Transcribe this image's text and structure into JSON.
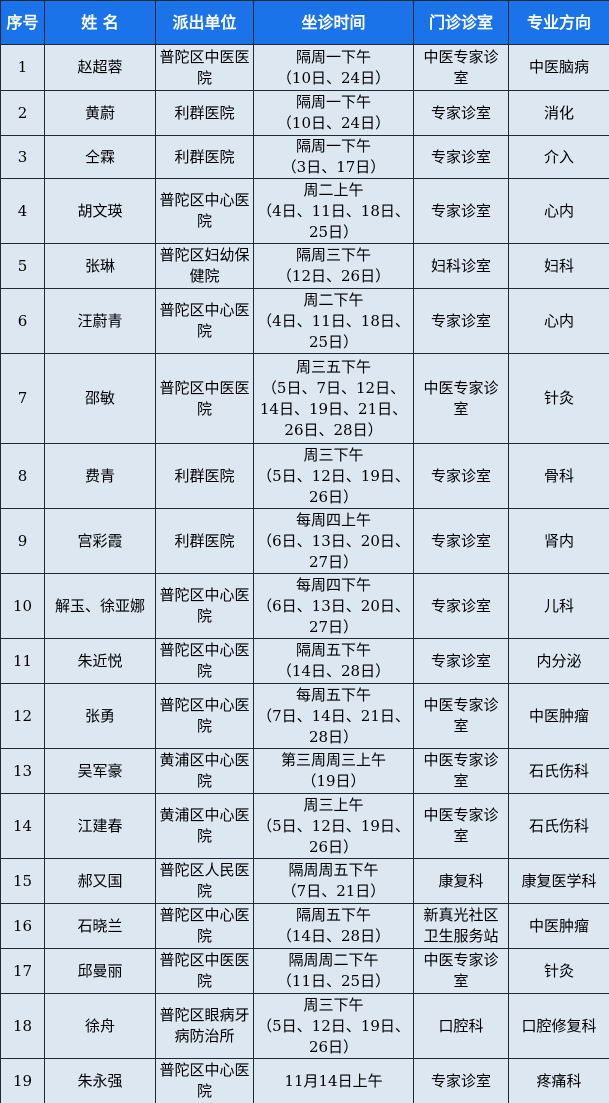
{
  "table": {
    "header": [
      "序号",
      "姓 名",
      "派出单位",
      "坐诊时间",
      "门诊诊室",
      "专业方向"
    ],
    "rows": [
      [
        "1",
        "赵超蓉",
        "普陀区中医医院",
        "隔周一下午\n（10日、24日）",
        "中医专家诊室",
        "中医脑病"
      ],
      [
        "2",
        "黄蔚",
        "利群医院",
        "隔周一下午\n（10日、24日）",
        "专家诊室",
        "消化"
      ],
      [
        "3",
        "仝霖",
        "利群医院",
        "隔周一下午\n（3日、17日）",
        "专家诊室",
        "介入"
      ],
      [
        "4",
        "胡文瑛",
        "普陀区中心医院",
        "周二上午\n（4日、11日、18日、25日）",
        "专家诊室",
        "心内"
      ],
      [
        "5",
        "张琳",
        "普陀区妇幼保健院",
        "隔周三下午\n（12日、26日）",
        "妇科诊室",
        "妇科"
      ],
      [
        "6",
        "汪蔚青",
        "普陀区中心医院",
        "周二下午\n（4日、11日、18日、25日）",
        "专家诊室",
        "心内"
      ],
      [
        "7",
        "邵敏",
        "普陀区中医医院",
        "周三五下午\n（5日、7日、12日、14日、19日、21日、26日、28日）",
        "中医专家诊室",
        "针灸"
      ],
      [
        "8",
        "费青",
        "利群医院",
        "周三下午\n（5日、12日、19日、26日）",
        "专家诊室",
        "骨科"
      ],
      [
        "9",
        "宫彩霞",
        "利群医院",
        "每周四上午\n（6日、13日、20日、27日）",
        "专家诊室",
        "肾内"
      ],
      [
        "10",
        "解玉、徐亚娜",
        "普陀区中心医院",
        "每周四下午\n（6日、13日、20日、27日）",
        "专家诊室",
        "儿科"
      ],
      [
        "11",
        "朱近悦",
        "普陀区中心医院",
        "隔周五下午\n（14日、28日）",
        "专家诊室",
        "内分泌"
      ],
      [
        "12",
        "张勇",
        "普陀区中心医院",
        "每周五下午\n（7日、14日、21日、28日）",
        "中医专家诊室",
        "中医肿瘤"
      ],
      [
        "13",
        "吴军豪",
        "黄浦区中心医院",
        "第三周周三上午\n（19日）",
        "中医专家诊室",
        "石氏伤科"
      ],
      [
        "14",
        "江建春",
        "黄浦区中心医院",
        "周三上午\n（5日、12日、19日、26日）",
        "中医专家诊室",
        "石氏伤科"
      ],
      [
        "15",
        "郝又国",
        "普陀区人民医院",
        "隔周周五下午\n（7日、21日）",
        "康复科",
        "康复医学科"
      ],
      [
        "16",
        "石晓兰",
        "普陀区中心医院",
        "隔周五下午\n（14日、28日）",
        "新真光社区卫生服务站",
        "中医肿瘤"
      ],
      [
        "17",
        "邱曼丽",
        "普陀区中医医院",
        "隔周周二下午\n（11日、25日）",
        "中医专家诊室",
        "针灸"
      ],
      [
        "18",
        "徐舟",
        "普陀区眼病牙病防治所",
        "周三下午\n（5日、12日、19日、26日）",
        "口腔科",
        "口腔修复科"
      ],
      [
        "19",
        "朱永强",
        "普陀区中心医院",
        "11月14日上午",
        "专家诊室",
        "疼痛科"
      ]
    ]
  }
}
